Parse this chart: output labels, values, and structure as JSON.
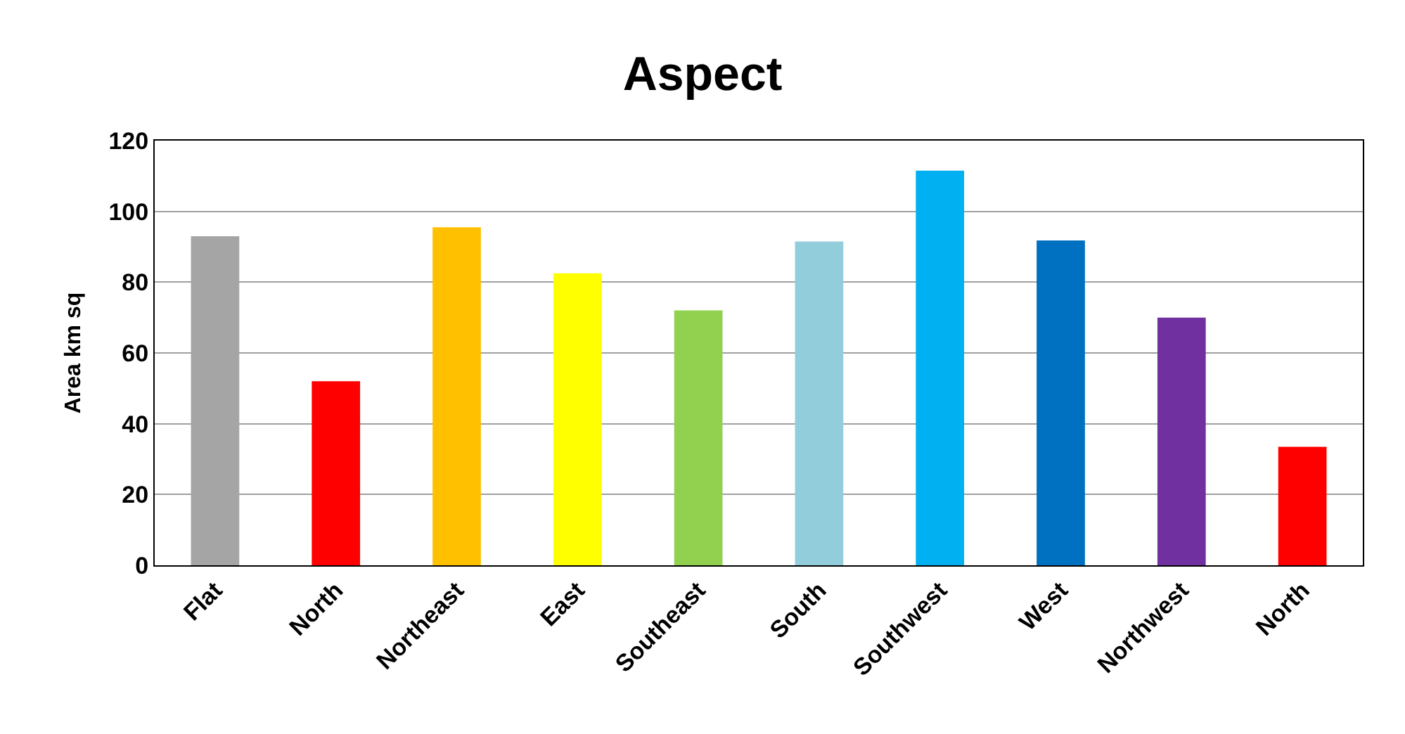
{
  "chart_data": {
    "type": "bar",
    "title": "Aspect",
    "ylabel": "Area km sq",
    "categories": [
      "Flat",
      "North",
      "Northeast",
      "East",
      "Southeast",
      "South",
      "Southwest",
      "West",
      "Northwest",
      "North"
    ],
    "values": [
      93,
      52,
      95.5,
      82.5,
      72,
      91.5,
      111.5,
      91.8,
      70,
      33.5
    ],
    "colors": [
      "#a5a5a5",
      "#ff0000",
      "#ffc000",
      "#ffff00",
      "#92d050",
      "#92cddc",
      "#00b0f0",
      "#0070c0",
      "#7030a0",
      "#ff0000"
    ],
    "ylim": [
      0,
      120
    ],
    "yticks": [
      0,
      20,
      40,
      60,
      80,
      100,
      120
    ],
    "grid": "y",
    "legend": false
  }
}
